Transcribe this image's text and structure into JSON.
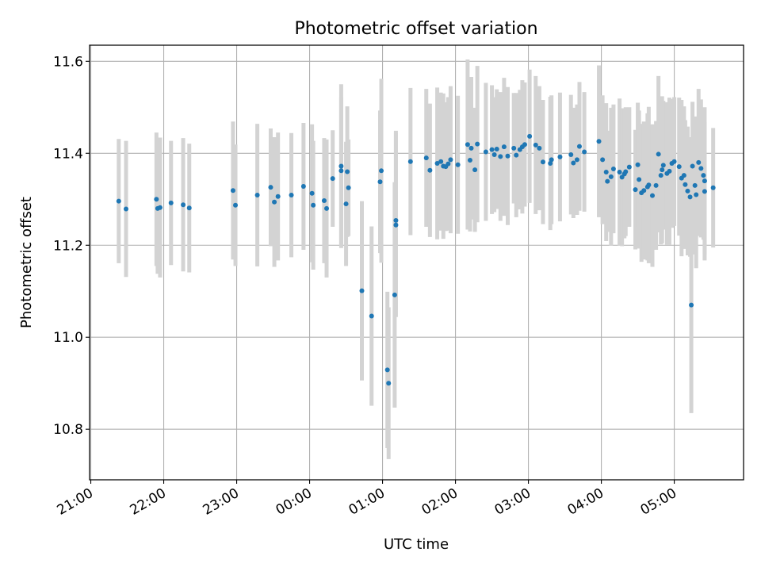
{
  "chart_data": {
    "type": "scatter",
    "title": "Photometric offset variation",
    "xlabel": "UTC time",
    "ylabel": "Photometric offset",
    "x_ticks": [
      "21:00",
      "22:00",
      "23:00",
      "00:00",
      "01:00",
      "02:00",
      "03:00",
      "04:00",
      "05:00"
    ],
    "y_ticks": [
      "10.8",
      "11.0",
      "11.2",
      "11.4",
      "11.6"
    ],
    "xlim": [
      "20:59",
      "05:57"
    ],
    "ylim": [
      10.69,
      11.635
    ],
    "grid": true,
    "colors": {
      "point": "#1f77b4",
      "errorbar": "#d3d3d3",
      "grid": "#b0b0b0"
    },
    "series": [
      {
        "x": [
          "21:23",
          "21:29",
          "21:54",
          "21:55",
          "21:57",
          "22:06",
          "22:16",
          "22:21",
          "22:57",
          "22:59",
          "23:17",
          "23:28",
          "23:31",
          "23:34",
          "23:45",
          "23:55",
          "00:02",
          "00:03",
          "00:12",
          "00:14",
          "00:19",
          "00:26",
          "00:26",
          "00:30",
          "00:31",
          "00:32",
          "00:43",
          "00:51",
          "00:58",
          "00:59",
          "01:04",
          "01:05",
          "01:10",
          "01:11",
          "01:11",
          "01:23",
          "01:36",
          "01:39",
          "01:45",
          "01:48",
          "01:50",
          "01:52",
          "01:54",
          "01:56",
          "02:02",
          "02:10",
          "02:12",
          "02:13",
          "02:16",
          "02:18",
          "02:25",
          "02:30",
          "02:32",
          "02:34",
          "02:37",
          "02:40",
          "02:43",
          "02:48",
          "02:50",
          "02:53",
          "02:55",
          "02:57",
          "03:01",
          "03:06",
          "03:09",
          "03:12",
          "03:18",
          "03:19",
          "03:26",
          "03:35",
          "03:37",
          "03:40",
          "03:42",
          "03:46",
          "03:58",
          "04:01",
          "04:04",
          "04:05",
          "04:08",
          "04:10",
          "04:15",
          "04:17",
          "04:19",
          "04:20",
          "04:23",
          "04:28",
          "04:30",
          "04:31",
          "04:33",
          "04:35",
          "04:38",
          "04:39",
          "04:42",
          "04:45",
          "04:47",
          "04:49",
          "04:50",
          "04:51",
          "04:54",
          "04:56",
          "04:58",
          "05:00",
          "05:04",
          "05:06",
          "05:08",
          "05:09",
          "05:11",
          "05:13",
          "05:14",
          "05:15",
          "05:17",
          "05:18",
          "05:20",
          "05:22",
          "05:24",
          "05:25",
          "05:25",
          "05:32"
        ],
        "y": [
          11.296,
          11.279,
          11.3,
          11.28,
          11.282,
          11.292,
          11.288,
          11.281,
          11.319,
          11.287,
          11.309,
          11.326,
          11.294,
          11.306,
          11.309,
          11.328,
          11.313,
          11.287,
          11.297,
          11.28,
          11.345,
          11.372,
          11.362,
          11.29,
          11.36,
          11.325,
          11.101,
          11.046,
          11.338,
          11.362,
          10.929,
          10.9,
          11.092,
          11.244,
          11.254,
          11.382,
          11.39,
          11.363,
          11.378,
          11.382,
          11.372,
          11.371,
          11.377,
          11.386,
          11.375,
          11.419,
          11.385,
          11.411,
          11.364,
          11.42,
          11.403,
          11.408,
          11.397,
          11.409,
          11.393,
          11.414,
          11.394,
          11.411,
          11.396,
          11.408,
          11.414,
          11.419,
          11.437,
          11.418,
          11.411,
          11.381,
          11.378,
          11.386,
          11.392,
          11.397,
          11.379,
          11.386,
          11.415,
          11.403,
          11.426,
          11.386,
          11.359,
          11.339,
          11.349,
          11.366,
          11.359,
          11.348,
          11.355,
          11.36,
          11.37,
          11.321,
          11.375,
          11.343,
          11.314,
          11.319,
          11.327,
          11.331,
          11.308,
          11.33,
          11.398,
          11.352,
          11.364,
          11.374,
          11.356,
          11.361,
          11.378,
          11.382,
          11.371,
          11.346,
          11.352,
          11.332,
          11.318,
          11.305,
          11.07,
          11.372,
          11.33,
          11.31,
          11.38,
          11.367,
          11.352,
          11.317,
          11.34,
          11.325
        ],
        "yerr": [
          0.135,
          0.148,
          0.145,
          0.142,
          0.152,
          0.135,
          0.145,
          0.14,
          0.15,
          0.132,
          0.155,
          0.128,
          0.141,
          0.139,
          0.135,
          0.138,
          0.15,
          0.14,
          0.136,
          0.15,
          0.105,
          0.178,
          0.16,
          0.135,
          0.142,
          0.105,
          0.195,
          0.195,
          0.155,
          0.2,
          0.17,
          0.165,
          0.245,
          0.2,
          0.195,
          0.16,
          0.15,
          0.145,
          0.165,
          0.15,
          0.158,
          0.14,
          0.145,
          0.16,
          0.15,
          0.185,
          0.155,
          0.155,
          0.135,
          0.17,
          0.15,
          0.14,
          0.125,
          0.13,
          0.14,
          0.15,
          0.15,
          0.12,
          0.135,
          0.13,
          0.145,
          0.135,
          0.145,
          0.15,
          0.135,
          0.135,
          0.145,
          0.14,
          0.14,
          0.13,
          0.12,
          0.12,
          0.14,
          0.13,
          0.165,
          0.14,
          0.15,
          0.11,
          0.15,
          0.14,
          0.16,
          0.15,
          0.14,
          0.14,
          0.13,
          0.13,
          0.135,
          0.15,
          0.15,
          0.15,
          0.16,
          0.17,
          0.155,
          0.14,
          0.17,
          0.15,
          0.16,
          0.14,
          0.155,
          0.16,
          0.14,
          0.14,
          0.15,
          0.17,
          0.15,
          0.14,
          0.14,
          0.13,
          0.235,
          0.14,
          0.15,
          0.16,
          0.16,
          0.15,
          0.14,
          0.15,
          0.16,
          0.13
        ]
      }
    ]
  }
}
